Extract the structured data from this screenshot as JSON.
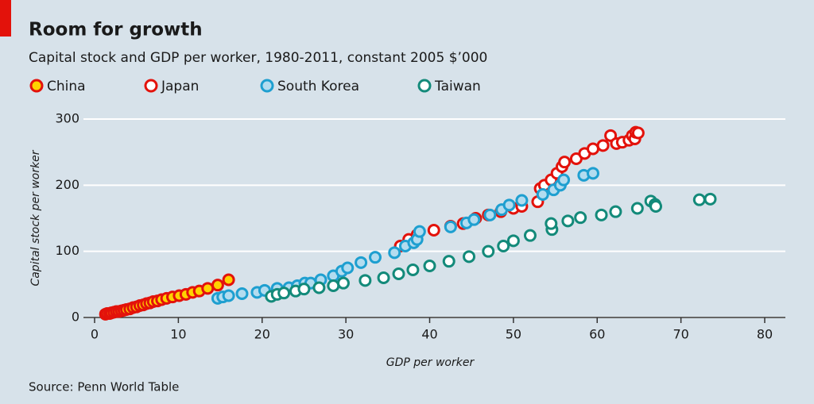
{
  "chart_data": {
    "type": "scatter",
    "title": "Room for growth",
    "subtitle": "Capital stock and GDP per worker, 1980-2011, constant 2005 $’000",
    "x_label": "GDP per worker",
    "y_label": "Capital stock per worker",
    "source": "Source: Penn World Table",
    "xlim": [
      0,
      80
    ],
    "xticks": [
      0,
      10,
      20,
      30,
      40,
      50,
      60,
      70,
      80
    ],
    "ylim": [
      0,
      300
    ],
    "yticks": [
      0,
      100,
      200,
      300
    ],
    "grid": true,
    "series": [
      {
        "name": "China",
        "color": "#e3120b",
        "fill": "#ffd200",
        "x": [
          1.3,
          1.5,
          1.8,
          2.0,
          2.3,
          2.6,
          2.9,
          3.2,
          3.5,
          3.8,
          4.2,
          4.6,
          5.0,
          5.4,
          5.8,
          6.2,
          6.6,
          7.0,
          7.5,
          8.0,
          8.6,
          9.3,
          10.1,
          10.9,
          11.7,
          12.5,
          13.5,
          14.7,
          16.0
        ],
        "values": [
          5,
          6,
          6,
          7,
          8,
          9,
          9,
          10,
          11,
          12,
          13,
          15,
          16,
          18,
          19,
          21,
          22,
          24,
          25,
          27,
          29,
          31,
          33,
          35,
          38,
          40,
          44,
          49,
          57
        ]
      },
      {
        "name": "Japan",
        "color": "#e3120b",
        "fill": "#ffffff",
        "x": [
          36.5,
          37.5,
          38.5,
          40.5,
          42.5,
          44.0,
          45.5,
          47.0,
          48.5,
          50.0,
          51.0,
          52.9,
          53.2,
          53.7,
          54.5,
          55.2,
          55.8,
          56.1,
          57.5,
          58.5,
          59.5,
          60.7,
          61.6,
          62.3,
          63.0,
          63.8,
          64.2,
          64.5,
          64.6,
          64.9
        ],
        "values": [
          108,
          118,
          125,
          132,
          138,
          142,
          150,
          155,
          160,
          165,
          168,
          175,
          195,
          200,
          208,
          218,
          228,
          235,
          240,
          248,
          255,
          260,
          275,
          263,
          265,
          268,
          275,
          270,
          280,
          279
        ]
      },
      {
        "name": "South Korea",
        "color": "#1e9fd0",
        "fill": "#b3dcef",
        "x": [
          14.7,
          15.3,
          16.0,
          17.6,
          19.4,
          20.3,
          21.8,
          23.2,
          24.2,
          25.1,
          25.8,
          27.0,
          28.5,
          29.5,
          30.2,
          31.8,
          33.5,
          35.8,
          37.1,
          38.1,
          38.5,
          38.8,
          42.5,
          44.4,
          45.3,
          47.2,
          48.6,
          49.5,
          51.0,
          53.5,
          54.8,
          55.6,
          56.0,
          58.4,
          59.5
        ],
        "values": [
          29,
          31,
          33,
          36,
          38,
          41,
          44,
          45,
          48,
          52,
          52,
          57,
          63,
          70,
          75,
          83,
          91,
          98,
          108,
          113,
          118,
          130,
          137,
          143,
          148,
          155,
          163,
          170,
          177,
          186,
          193,
          200,
          208,
          215,
          218
        ]
      },
      {
        "name": "Taiwan",
        "color": "#138a7a",
        "fill": "#ffffff",
        "x": [
          21.1,
          21.8,
          22.6,
          24.0,
          25.0,
          26.8,
          28.5,
          29.7,
          32.3,
          34.5,
          36.3,
          38.0,
          40.0,
          42.3,
          44.7,
          47.0,
          48.8,
          50.0,
          52.0,
          54.6,
          54.5,
          56.5,
          58.0,
          60.5,
          62.2,
          64.8,
          66.4,
          66.9,
          67.0,
          72.2,
          73.5
        ],
        "values": [
          32,
          35,
          37,
          40,
          43,
          45,
          48,
          52,
          56,
          60,
          66,
          72,
          78,
          85,
          92,
          100,
          108,
          116,
          124,
          133,
          142,
          146,
          151,
          155,
          160,
          165,
          176,
          171,
          168,
          178,
          179
        ]
      }
    ]
  }
}
